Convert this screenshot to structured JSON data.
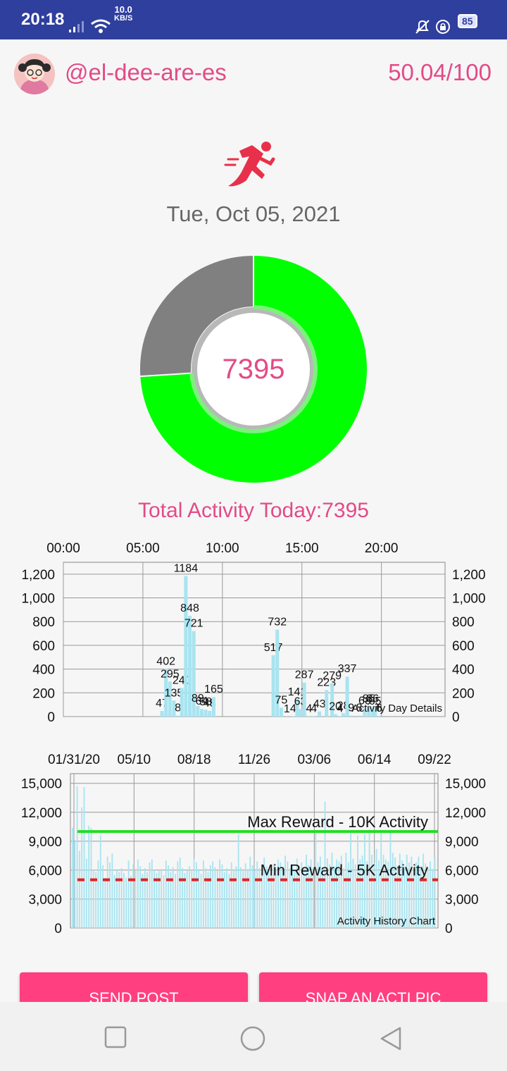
{
  "status_bar": {
    "time": "20:18",
    "net_speed": "10.0",
    "net_unit": "KB/S",
    "battery": "85"
  },
  "header": {
    "username": "@el-dee-are-es",
    "score": "50.04/100"
  },
  "date": "Tue, Oct 05, 2021",
  "donut": {
    "value": "7395",
    "progress_fraction": 0.74,
    "colors": {
      "progress": "#00ff00",
      "remaining": "#808080"
    }
  },
  "total_label": "Total Activity Today:7395",
  "chart_data": [
    {
      "type": "bar",
      "caption": "Activity Day Details",
      "x_axis_top_ticks": [
        "00:00",
        "05:00",
        "10:00",
        "15:00",
        "20:00"
      ],
      "xlim_hours": [
        0,
        24
      ],
      "ylim": [
        0,
        1300
      ],
      "y_ticks": [
        "0",
        "200",
        "400",
        "600",
        "800",
        "1,000",
        "1,200"
      ],
      "grid": true,
      "bar_color": "#a8e4f0",
      "bars": [
        {
          "hour": 6.2,
          "value": 47,
          "label": "47"
        },
        {
          "hour": 6.45,
          "value": 402,
          "label": "402"
        },
        {
          "hour": 6.7,
          "value": 295,
          "label": "295"
        },
        {
          "hour": 6.95,
          "value": 135,
          "label": "135"
        },
        {
          "hour": 7.2,
          "value": 8,
          "label": "8"
        },
        {
          "hour": 7.45,
          "value": 240,
          "label": "240"
        },
        {
          "hour": 7.7,
          "value": 1184,
          "label": "1184"
        },
        {
          "hour": 7.95,
          "value": 848,
          "label": "848"
        },
        {
          "hour": 8.2,
          "value": 721,
          "label": "721"
        },
        {
          "hour": 8.45,
          "value": 89,
          "label": "89"
        },
        {
          "hour": 8.7,
          "value": 64,
          "label": "64"
        },
        {
          "hour": 8.95,
          "value": 58,
          "label": "58"
        },
        {
          "hour": 9.2,
          "value": 48,
          "label": "48"
        },
        {
          "hour": 9.45,
          "value": 165,
          "label": "165"
        },
        {
          "hour": 13.2,
          "value": 517,
          "label": "517"
        },
        {
          "hour": 13.45,
          "value": 732,
          "label": "732"
        },
        {
          "hour": 13.7,
          "value": 75,
          "label": "75"
        },
        {
          "hour": 14.05,
          "value": 1,
          "label": "1"
        },
        {
          "hour": 14.45,
          "value": 4,
          "label": "4"
        },
        {
          "hour": 14.7,
          "value": 141,
          "label": "141"
        },
        {
          "hour": 14.9,
          "value": 63,
          "label": "63"
        },
        {
          "hour": 15.15,
          "value": 287,
          "label": "287"
        },
        {
          "hour": 15.45,
          "value": 4,
          "label": "4"
        },
        {
          "hour": 15.75,
          "value": 4,
          "label": "4"
        },
        {
          "hour": 16.1,
          "value": 43,
          "label": "43"
        },
        {
          "hour": 16.55,
          "value": 223,
          "label": "223"
        },
        {
          "hour": 16.9,
          "value": 279,
          "label": "279"
        },
        {
          "hour": 17.1,
          "value": 20,
          "label": "20"
        },
        {
          "hour": 17.4,
          "value": 4,
          "label": "4"
        },
        {
          "hour": 17.6,
          "value": 28,
          "label": "28"
        },
        {
          "hour": 17.85,
          "value": 337,
          "label": "337"
        },
        {
          "hour": 18.1,
          "value": 9,
          "label": "9"
        },
        {
          "hour": 18.6,
          "value": 8,
          "label": "8"
        },
        {
          "hour": 18.95,
          "value": 68,
          "label": "68"
        },
        {
          "hour": 19.2,
          "value": 85,
          "label": "85"
        },
        {
          "hour": 19.45,
          "value": 86,
          "label": "86"
        },
        {
          "hour": 19.6,
          "value": 65,
          "label": "65"
        },
        {
          "hour": 19.85,
          "value": 6,
          "label": "6"
        }
      ]
    },
    {
      "type": "bar",
      "caption": "Activity History Chart",
      "x_axis_top_ticks": [
        "01/31/20",
        "05/10",
        "08/18",
        "11/26",
        "03/06",
        "06/14",
        "09/22"
      ],
      "ylim": [
        0,
        16000
      ],
      "y_ticks": [
        "0",
        "3,000",
        "6,000",
        "9,000",
        "12,000",
        "15,000"
      ],
      "grid": true,
      "bar_color": "#a8e4f0",
      "limit_lines": [
        {
          "label": "Max Reward - 10K Activity",
          "value": 10000,
          "color": "#22dd22",
          "style": "solid"
        },
        {
          "label": "Min Reward - 5K Activity",
          "value": 5000,
          "color": "#dd2222",
          "style": "dashed"
        }
      ],
      "values": [
        10400,
        9000,
        14700,
        8000,
        12500,
        14600,
        7200,
        10600,
        10400,
        6000,
        5800,
        7000,
        9600,
        6500,
        5200,
        7400,
        6800,
        7700,
        5500,
        6000,
        5800,
        6200,
        5700,
        5200,
        7000,
        5400,
        6600,
        5900,
        7100,
        6400,
        5600,
        6200,
        5800,
        6800,
        7100,
        6000,
        5700,
        5900,
        6100,
        5500,
        7000,
        6500,
        5800,
        6300,
        5600,
        6900,
        7300,
        6200,
        5700,
        6000,
        6400,
        5900,
        7200,
        6800,
        6100,
        5600,
        7000,
        6200,
        5800,
        6500,
        6900,
        6300,
        5900,
        7100,
        6600,
        5800,
        6200,
        5600,
        6800,
        6100,
        6400,
        9700,
        6300,
        5900,
        6700,
        6100,
        7400,
        6500,
        6000,
        6900,
        6200,
        5800,
        7300,
        6400,
        6100,
        5700,
        6600,
        6200,
        7100,
        6800,
        6300,
        7500,
        6900,
        6200,
        6600,
        5900,
        7200,
        6400,
        6800,
        6100,
        7600,
        6500,
        7100,
        6300,
        9900,
        6800,
        7400,
        6000,
        13100,
        7200,
        6600,
        7800,
        6400,
        7100,
        6900,
        7500,
        6200,
        7800,
        6800,
        9800,
        7200,
        6600,
        9600,
        7100,
        7500,
        9700,
        6900,
        10200,
        7600,
        6700,
        8200,
        7000,
        9800,
        7600,
        7100,
        6900,
        10200,
        7800,
        7300,
        6500,
        7700,
        7000,
        6200,
        7600,
        6800,
        7400,
        6100,
        6800,
        7400,
        6200,
        7700,
        6700,
        6200,
        6900,
        6100,
        7300
      ]
    }
  ],
  "buttons": {
    "send_post": "SEND POST",
    "snap_pic": "SNAP AN ACTI PIC"
  }
}
